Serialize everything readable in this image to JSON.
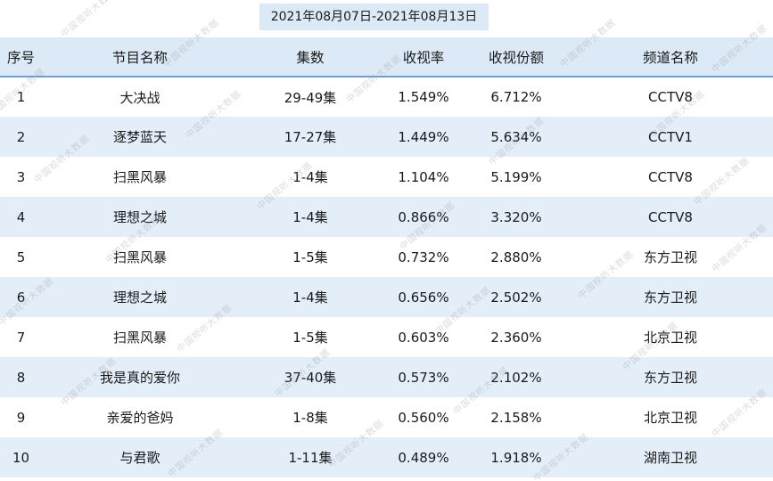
{
  "date_range": "2021年08月07日-2021年08月13日",
  "columns": [
    "序号",
    "节目名称",
    "集数",
    "收视率",
    "收视份额",
    "频道名称"
  ],
  "rows": [
    [
      "1",
      "大决战",
      "29-49集",
      "1.549%",
      "6.712%",
      "CCTV8"
    ],
    [
      "2",
      "逐梦蓝天",
      "17-27集",
      "1.449%",
      "5.634%",
      "CCTV1"
    ],
    [
      "3",
      "扫黑风暴",
      "1-4集",
      "1.104%",
      "5.199%",
      "CCTV8"
    ],
    [
      "4",
      "理想之城",
      "1-4集",
      "0.866%",
      "3.320%",
      "CCTV8"
    ],
    [
      "5",
      "扫黑风暴",
      "1-5集",
      "0.732%",
      "2.880%",
      "东方卫视"
    ],
    [
      "6",
      "理想之城",
      "1-4集",
      "0.656%",
      "2.502%",
      "东方卫视"
    ],
    [
      "7",
      "扫黑风暴",
      "1-5集",
      "0.603%",
      "2.360%",
      "北京卫视"
    ],
    [
      "8",
      "我是真的爱你",
      "37-40集",
      "0.573%",
      "2.102%",
      "东方卫视"
    ],
    [
      "9",
      "亲爱的爸妈",
      "1-8集",
      "0.560%",
      "2.158%",
      "北京卫视"
    ],
    [
      "10",
      "与君歌",
      "1-11集",
      "0.489%",
      "1.918%",
      "湖南卫视"
    ]
  ],
  "watermark_text": "中国视听大数据",
  "colors": {
    "header_bg": "#dce9f6",
    "stripe_bg": "#e4eef9",
    "header_rule": "#6d9fd6"
  }
}
